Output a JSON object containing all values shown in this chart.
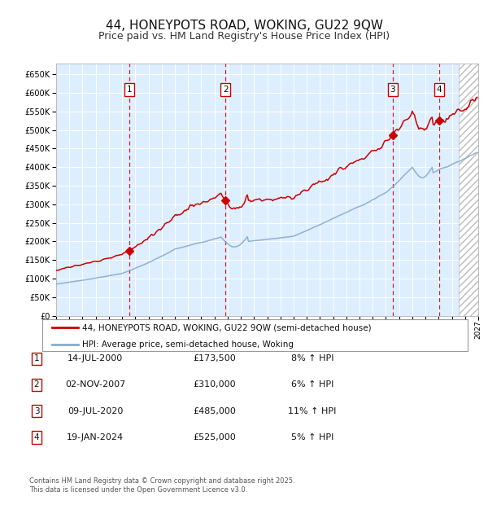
{
  "title": "44, HONEYPOTS ROAD, WOKING, GU22 9QW",
  "subtitle": "Price paid vs. HM Land Registry's House Price Index (HPI)",
  "legend_line1": "44, HONEYPOTS ROAD, WOKING, GU22 9QW (semi-detached house)",
  "legend_line2": "HPI: Average price, semi-detached house, Woking",
  "footnote": "Contains HM Land Registry data © Crown copyright and database right 2025.\nThis data is licensed under the Open Government Licence v3.0.",
  "transactions": [
    {
      "num": 1,
      "date": "14-JUL-2000",
      "price": 173500,
      "hpi_pct": "8%",
      "year": 2000.54
    },
    {
      "num": 2,
      "date": "02-NOV-2007",
      "price": 310000,
      "hpi_pct": "6%",
      "year": 2007.84
    },
    {
      "num": 3,
      "date": "09-JUL-2020",
      "price": 485000,
      "hpi_pct": "11%",
      "year": 2020.52
    },
    {
      "num": 4,
      "date": "19-JAN-2024",
      "price": 525000,
      "hpi_pct": "5%",
      "year": 2024.05
    }
  ],
  "red_line_color": "#cc0000",
  "blue_line_color": "#88aacc",
  "background_chart": "#ddeeff",
  "grid_color": "#ffffff",
  "dashed_line_color": "#cc0000",
  "marker_color": "#cc0000",
  "y_min": 0,
  "y_max": 680000,
  "x_min": 1995.0,
  "x_max": 2027.0,
  "hatch_start": 2025.5,
  "title_fontsize": 11,
  "subtitle_fontsize": 9,
  "axis_fontsize": 7
}
